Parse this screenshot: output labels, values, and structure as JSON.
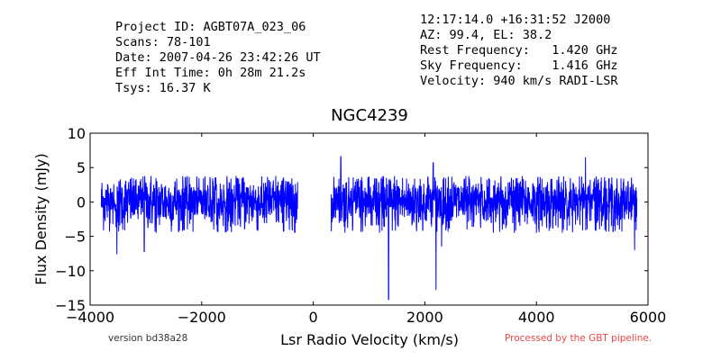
{
  "header": {
    "left_lines": [
      "Project ID: AGBT07A_023_06",
      "Scans: 78-101",
      "Date: 2007-04-26 23:42:26 UT",
      "Eff Int Time: 0h 28m 21.2s",
      "Tsys: 16.37 K"
    ],
    "right_lines": [
      "12:17:14.0 +16:31:52 J2000",
      "AZ: 99.4, EL: 38.2",
      "Rest Frequency:   1.420 GHz",
      "Sky Frequency:    1.416 GHz",
      "Velocity: 940 km/s RADI-LSR"
    ]
  },
  "footer": {
    "version": "version bd38a28",
    "processed": "Processed by the GBT pipeline.",
    "processed_color": "#ee4444"
  },
  "chart_data": {
    "type": "line",
    "title": "NGC4239",
    "xlabel": "Lsr Radio Velocity (km/s)",
    "ylabel": "Flux Density (mJy)",
    "xlim": [
      -4000,
      6000
    ],
    "ylim": [
      -15,
      10
    ],
    "xticks": [
      -4000,
      -2000,
      0,
      2000,
      4000,
      6000
    ],
    "xtick_labels": [
      "−4000",
      "−2000",
      "0",
      "2000",
      "4000",
      "6000"
    ],
    "yticks": [
      10,
      5,
      0,
      -5,
      -10,
      -15
    ],
    "ytick_labels": [
      "10",
      "5",
      "0",
      "−5",
      "−10",
      "−15"
    ],
    "grid": false,
    "line_color": "#0000ff",
    "series": [
      {
        "noise_sigma_mJy": 2.0,
        "segments": [
          {
            "x_start": -3800,
            "x_end": -280
          },
          {
            "x_start": 320,
            "x_end": 5800
          }
        ],
        "features": [
          {
            "x": -3520,
            "y": -7.6
          },
          {
            "x": -3030,
            "y": -7.2
          },
          {
            "x": 1350,
            "y": -14.2
          },
          {
            "x": 2200,
            "y": -12.8
          },
          {
            "x": 2150,
            "y": 5.7
          },
          {
            "x": 495,
            "y": 6.6
          },
          {
            "x": 4880,
            "y": 6.5
          },
          {
            "x": 5760,
            "y": -7.0
          },
          {
            "x": 2300,
            "y": -6.5
          }
        ]
      }
    ]
  }
}
